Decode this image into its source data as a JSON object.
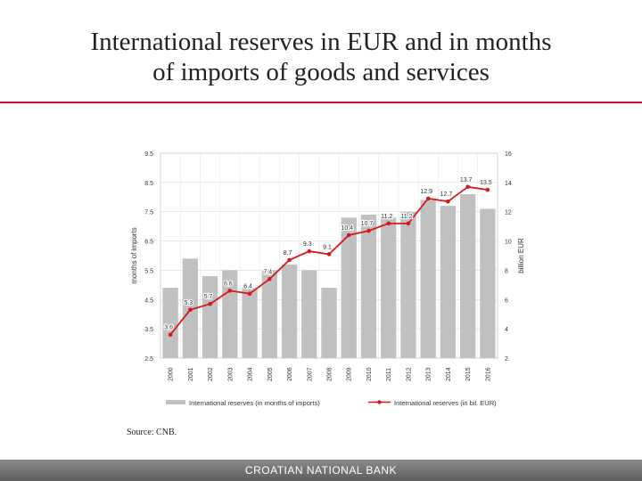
{
  "title_line1": "International reserves in EUR and in months",
  "title_line2": "of imports of goods and services",
  "source": "Source: CNB.",
  "footer": "CROATIAN NATIONAL BANK",
  "colors": {
    "bar": "#c0c0c0",
    "line": "#d7191c",
    "accent_rule": "#c8102e",
    "footer": "#6e6e6e"
  },
  "chart_data": {
    "type": "bar",
    "categories": [
      "2000",
      "2001",
      "2002",
      "2003",
      "2004",
      "2005",
      "2006",
      "2007",
      "2008",
      "2009",
      "2010",
      "2011",
      "2012",
      "2013",
      "2014",
      "2015",
      "2016"
    ],
    "series": [
      {
        "name": "International reserves (in months of imports)",
        "type": "bar",
        "axis": "left",
        "values": [
          4.9,
          5.9,
          5.3,
          5.5,
          4.9,
          5.5,
          5.7,
          5.5,
          4.9,
          7.3,
          7.4,
          7.3,
          7.5,
          7.9,
          7.7,
          8.1,
          7.6
        ]
      },
      {
        "name": "International reserves (in bil. EUR)",
        "type": "line",
        "axis": "right",
        "values": [
          3.6,
          5.3,
          5.7,
          6.6,
          6.4,
          7.4,
          8.7,
          9.3,
          9.1,
          10.4,
          10.7,
          11.2,
          11.2,
          12.9,
          12.7,
          13.7,
          13.5
        ],
        "labels": [
          "3.6",
          "5.3",
          "5.7",
          "6.6",
          "6.4",
          "7.4",
          "8.7",
          "9.3",
          "9.1",
          "10.4",
          "10.7",
          "11.2",
          "11.2",
          "12.9",
          "12.7",
          "13.7",
          "13.5"
        ]
      }
    ],
    "ylabel_left": "months of imports",
    "ylabel_right": "billion EUR",
    "ylim_left": [
      2.5,
      9.5
    ],
    "yticks_left": [
      "9.5",
      "8.5",
      "7.5",
      "6.5",
      "5.5",
      "4.5",
      "3.5",
      "2.5"
    ],
    "ylim_right": [
      2,
      16
    ],
    "yticks_right": [
      "16",
      "14",
      "12",
      "10",
      "8",
      "6",
      "4",
      "2"
    ],
    "grid": true,
    "legend_position": "bottom"
  }
}
